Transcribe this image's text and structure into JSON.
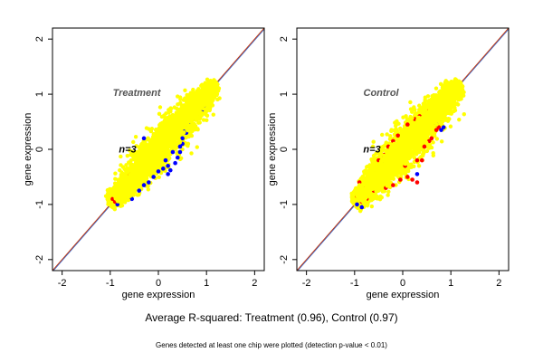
{
  "figure": {
    "caption": "Average R-squared: Treatment (0.96), Control (0.97)",
    "footnote": "Genes detected at least one chip were plotted (detection p-value < 0.01)"
  },
  "chart_data": [
    {
      "type": "scatter",
      "title": "Treatment",
      "annotation": "n=3",
      "xlabel": "gene expression",
      "ylabel": "gene expression",
      "xlim": [
        -2.2,
        2.2
      ],
      "ylim": [
        -2.2,
        2.2
      ],
      "xticks": [
        -2,
        -1,
        0,
        1,
        2
      ],
      "yticks": [
        -2,
        -1,
        0,
        1,
        2
      ],
      "grid": false,
      "reference_lines": [
        {
          "kind": "identity",
          "color": "#cc3300"
        },
        {
          "kind": "fit",
          "color": "#3366cc"
        }
      ],
      "series": [
        {
          "color": "#ffff00",
          "description": "bulk of genes along diagonal",
          "cloud": {
            "x_from": -1.0,
            "x_to": 1.2,
            "spread": 0.2
          },
          "points": []
        },
        {
          "color": "#0000ff",
          "points": [
            [
              0.3,
              -0.05
            ],
            [
              0.45,
              0.05
            ],
            [
              0.5,
              0.2
            ],
            [
              0.55,
              0.35
            ],
            [
              0.6,
              0.45
            ],
            [
              0.65,
              0.5
            ],
            [
              0.7,
              0.55
            ],
            [
              0.75,
              0.6
            ],
            [
              0.8,
              0.65
            ],
            [
              0.9,
              0.7
            ],
            [
              0.95,
              0.8
            ],
            [
              0.5,
              0.1
            ],
            [
              0.4,
              -0.15
            ],
            [
              0.35,
              -0.25
            ],
            [
              0.2,
              -0.3
            ],
            [
              0.1,
              -0.35
            ],
            [
              0.0,
              -0.4
            ],
            [
              -0.1,
              -0.5
            ],
            [
              -0.2,
              -0.6
            ],
            [
              0.45,
              -0.05
            ],
            [
              0.2,
              -0.45
            ],
            [
              0.25,
              -0.38
            ],
            [
              -0.3,
              -0.65
            ],
            [
              -0.4,
              -0.75
            ],
            [
              -0.55,
              -0.9
            ],
            [
              -0.75,
              -0.95
            ],
            [
              -0.85,
              -1.0
            ],
            [
              -0.3,
              0.2
            ],
            [
              0.15,
              -0.2
            ],
            [
              0.58,
              0.3
            ]
          ]
        },
        {
          "color": "#ff0000",
          "points": [
            [
              -0.9,
              -0.85
            ],
            [
              -0.95,
              -0.8
            ],
            [
              -0.85,
              -0.9
            ],
            [
              -0.9,
              -0.95
            ],
            [
              -0.8,
              -0.8
            ],
            [
              -0.75,
              -0.85
            ],
            [
              -0.95,
              -0.9
            ],
            [
              -0.88,
              -0.78
            ],
            [
              -0.6,
              -0.45
            ],
            [
              -0.55,
              -0.5
            ],
            [
              0.1,
              0.0
            ],
            [
              -0.2,
              -0.3
            ]
          ]
        }
      ]
    },
    {
      "type": "scatter",
      "title": "Control",
      "annotation": "n=3",
      "xlabel": "gene expression",
      "ylabel": "gene expression",
      "xlim": [
        -2.2,
        2.2
      ],
      "ylim": [
        -2.2,
        2.2
      ],
      "xticks": [
        -2,
        -1,
        0,
        1,
        2
      ],
      "yticks": [
        -2,
        -1,
        0,
        1,
        2
      ],
      "grid": false,
      "reference_lines": [
        {
          "kind": "identity",
          "color": "#cc3300"
        },
        {
          "kind": "fit",
          "color": "#3366cc"
        }
      ],
      "series": [
        {
          "color": "#ffff00",
          "description": "bulk of genes along diagonal",
          "cloud": {
            "x_from": -1.0,
            "x_to": 1.2,
            "spread": 0.22
          },
          "points": []
        },
        {
          "color": "#ff0000",
          "points": [
            [
              -0.9,
              -0.8
            ],
            [
              -0.85,
              -0.95
            ],
            [
              -0.95,
              -0.85
            ],
            [
              -0.8,
              -0.7
            ],
            [
              -0.9,
              -0.6
            ],
            [
              -0.75,
              -0.9
            ],
            [
              -0.6,
              -0.4
            ],
            [
              -0.5,
              -0.2
            ],
            [
              -0.4,
              -0.1
            ],
            [
              -0.3,
              0.05
            ],
            [
              -0.2,
              0.15
            ],
            [
              -0.1,
              0.25
            ],
            [
              0.1,
              0.45
            ],
            [
              0.25,
              0.55
            ],
            [
              0.35,
              0.6
            ],
            [
              0.5,
              0.65
            ],
            [
              0.55,
              0.7
            ],
            [
              0.65,
              0.7
            ],
            [
              0.1,
              -0.5
            ],
            [
              0.2,
              -0.55
            ],
            [
              0.3,
              -0.6
            ],
            [
              0.05,
              -0.3
            ],
            [
              -0.05,
              -0.55
            ],
            [
              0.4,
              -0.2
            ],
            [
              0.6,
              0.2
            ],
            [
              0.7,
              0.35
            ],
            [
              0.75,
              0.4
            ],
            [
              0.55,
              0.15
            ],
            [
              0.45,
              0.05
            ],
            [
              -0.2,
              -0.65
            ],
            [
              -0.35,
              -0.7
            ],
            [
              0.15,
              0.3
            ],
            [
              0.3,
              -0.2
            ],
            [
              -0.6,
              -0.75
            ],
            [
              0.8,
              0.55
            ]
          ]
        },
        {
          "color": "#0000ff",
          "points": [
            [
              -0.85,
              -1.05
            ],
            [
              -0.95,
              -1.0
            ],
            [
              0.85,
              0.4
            ],
            [
              0.8,
              0.35
            ],
            [
              0.6,
              0.65
            ],
            [
              0.3,
              -0.45
            ],
            [
              -0.45,
              -0.25
            ],
            [
              0.7,
              0.45
            ]
          ]
        }
      ]
    }
  ]
}
